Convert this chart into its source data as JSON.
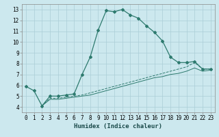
{
  "title": "",
  "xlabel": "Humidex (Indice chaleur)",
  "ylabel": "",
  "background_color": "#cce8ee",
  "grid_color": "#aacdd6",
  "line_color": "#2d7a6e",
  "xlim": [
    -0.5,
    23.5
  ],
  "ylim": [
    3.5,
    13.5
  ],
  "xticks": [
    0,
    1,
    2,
    3,
    4,
    5,
    6,
    7,
    8,
    9,
    10,
    11,
    12,
    13,
    14,
    15,
    16,
    17,
    18,
    19,
    20,
    21,
    22,
    23
  ],
  "yticks": [
    4,
    5,
    6,
    7,
    8,
    9,
    10,
    11,
    12,
    13
  ],
  "curve1_x": [
    0,
    1,
    2,
    3,
    4,
    5,
    6,
    7,
    8,
    9,
    10,
    11,
    12,
    13,
    14,
    15,
    16,
    17,
    18,
    19,
    20,
    21,
    22,
    23
  ],
  "curve1_y": [
    5.9,
    5.5,
    4.1,
    5.0,
    5.0,
    5.1,
    5.2,
    7.0,
    8.6,
    11.1,
    12.9,
    12.8,
    13.0,
    12.5,
    12.2,
    11.5,
    10.9,
    10.1,
    8.6,
    8.1,
    8.1,
    8.2,
    7.5,
    7.5
  ],
  "curve2_x": [
    2,
    3,
    4,
    5,
    6,
    7,
    8,
    9,
    10,
    11,
    12,
    13,
    14,
    15,
    16,
    17,
    18,
    19,
    20,
    21,
    22,
    23
  ],
  "curve2_y": [
    4.1,
    4.8,
    4.8,
    4.9,
    5.0,
    5.1,
    5.3,
    5.5,
    5.7,
    5.9,
    6.1,
    6.3,
    6.5,
    6.7,
    6.9,
    7.1,
    7.3,
    7.5,
    7.7,
    8.1,
    7.5,
    7.5
  ],
  "curve3_x": [
    2,
    3,
    4,
    5,
    6,
    7,
    8,
    9,
    10,
    11,
    12,
    13,
    14,
    15,
    16,
    17,
    18,
    19,
    20,
    21,
    22,
    23
  ],
  "curve3_y": [
    4.1,
    4.7,
    4.7,
    4.8,
    4.9,
    5.0,
    5.1,
    5.3,
    5.5,
    5.7,
    5.9,
    6.1,
    6.3,
    6.5,
    6.7,
    6.8,
    7.0,
    7.1,
    7.3,
    7.6,
    7.3,
    7.4
  ],
  "tick_fontsize": 5.5,
  "xlabel_fontsize": 6.5,
  "marker_size": 2.0
}
